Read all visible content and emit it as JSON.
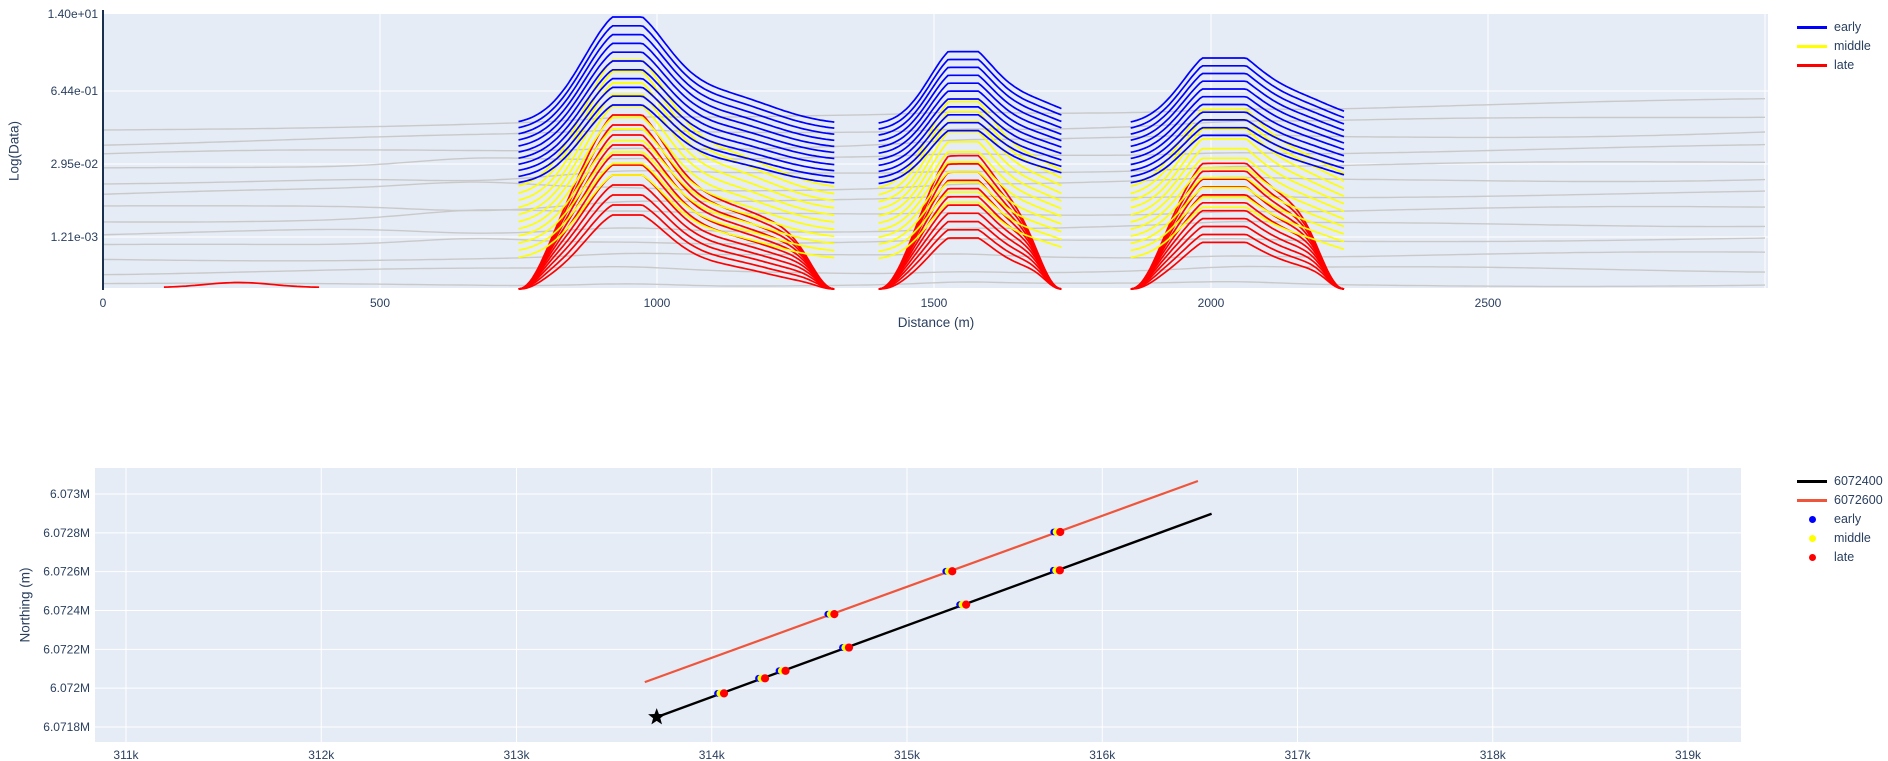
{
  "chart_data": [
    {
      "type": "line",
      "title": "",
      "xlabel": "Distance (m)",
      "ylabel": "Log(Data)",
      "background": "#e5ecf6",
      "grid": true,
      "x_range_m": [
        0,
        3006
      ],
      "x_ticks": [
        {
          "label": "0",
          "m": 0
        },
        {
          "label": "500",
          "m": 500
        },
        {
          "label": "1000",
          "m": 1000
        },
        {
          "label": "1500",
          "m": 1500
        },
        {
          "label": "2000",
          "m": 2000
        },
        {
          "label": "2500",
          "m": 2500
        }
      ],
      "x_grid_m": [
        500,
        1000,
        1500,
        2000,
        2500,
        3000
      ],
      "y_ticks": [
        {
          "label": "1.40e+01",
          "py": 14
        },
        {
          "label": "6.44e-01",
          "py": 91
        },
        {
          "label": "2.95e-02",
          "py": 164
        },
        {
          "label": "1.21e-03",
          "py": 237
        }
      ],
      "legend": {
        "position": "top-right",
        "items": [
          {
            "label": "early",
            "color": "#0000ff",
            "swatch": "line"
          },
          {
            "label": "middle",
            "color": "#ffff00",
            "swatch": "line"
          },
          {
            "label": "late",
            "color": "#ff0000",
            "swatch": "line"
          }
        ]
      },
      "bands": [
        {
          "name": "late",
          "color": "#ff0000",
          "count": 11,
          "tail0": 287,
          "dtail": -4.5,
          "peak0": 215,
          "dpeak": -10.0,
          "plunge": true
        },
        {
          "name": "middle",
          "color": "#ffff00",
          "count": 11,
          "tail0": 260,
          "dtail": -7.0,
          "peak0": 175,
          "dpeak": -11.5,
          "plunge": false
        },
        {
          "name": "early",
          "color": "#0000ff",
          "count": 11,
          "tail0": 185,
          "dtail": -6.0,
          "peak0": 105,
          "dpeak": -8.8,
          "plunge": false
        }
      ],
      "groups": [
        {
          "m0": 750,
          "m1": 1320,
          "peak_m": 940,
          "sigma_m": 72,
          "amp": 1.0,
          "shoulder_dm": 170,
          "shoulder_amp": 0.28
        },
        {
          "m0": 1400,
          "m1": 1730,
          "peak_m": 1545,
          "sigma_m": 54,
          "amp": 0.68,
          "shoulder_dm": 115,
          "shoulder_amp": 0.35
        },
        {
          "m0": 1855,
          "m1": 2240,
          "peak_m": 2010,
          "sigma_m": 62,
          "amp": 0.62,
          "shoulder_dm": 125,
          "shoulder_amp": 0.45
        }
      ],
      "gray_traces": {
        "color": "#c9c9c9",
        "count": 13,
        "top_py": 130,
        "spacing_py": 12.9,
        "right_drift_py": -30,
        "bump_m": 680
      },
      "extra_trace": {
        "color": "#ff0000",
        "m0": 110,
        "m1": 395,
        "peak_m": 245,
        "base_py": 287.5,
        "amp_py": 5
      }
    },
    {
      "type": "scatter",
      "title": "",
      "xlabel": "",
      "ylabel": "Northing (m)",
      "background": "#e5ecf6",
      "grid": true,
      "x_range": [
        310840,
        319270
      ],
      "y_range": [
        6071740,
        6073140
      ],
      "x_ticks": [
        {
          "label": "311k",
          "x": 311000
        },
        {
          "label": "312k",
          "x": 312000
        },
        {
          "label": "313k",
          "x": 313000
        },
        {
          "label": "314k",
          "x": 314000
        },
        {
          "label": "315k",
          "x": 315000
        },
        {
          "label": "316k",
          "x": 316000
        },
        {
          "label": "317k",
          "x": 317000
        },
        {
          "label": "318k",
          "x": 318000
        },
        {
          "label": "319k",
          "x": 319000
        }
      ],
      "y_ticks": [
        {
          "label": "6.073M",
          "y": 6073000
        },
        {
          "label": "6.0728M",
          "y": 6072800
        },
        {
          "label": "6.0726M",
          "y": 6072600
        },
        {
          "label": "6.0724M",
          "y": 6072400
        },
        {
          "label": "6.0722M",
          "y": 6072200
        },
        {
          "label": "6.072M",
          "y": 6072000
        },
        {
          "label": "6.0718M",
          "y": 6071800
        }
      ],
      "series": [
        {
          "name": "6072400",
          "color": "#000000",
          "type": "line",
          "width": 2.4,
          "points": [
            [
              313718,
              6071851
            ],
            [
              316560,
              6072898
            ]
          ],
          "start_marker": {
            "symbol": "star",
            "color": "#000000",
            "size": 9
          },
          "stations_x": [
            314050,
            314260,
            314365,
            314690,
            315290,
            315770
          ]
        },
        {
          "name": "6072600",
          "color": "#ef553b",
          "type": "line",
          "width": 2.2,
          "points": [
            [
              313657,
              6072031
            ],
            [
              316490,
              6073067
            ]
          ],
          "stations_x": [
            314615,
            315219,
            315772
          ]
        }
      ],
      "marker_classes": [
        {
          "label": "early",
          "color": "#0000ff"
        },
        {
          "label": "middle",
          "color": "#ffff00"
        },
        {
          "label": "late",
          "color": "#ff0000"
        }
      ],
      "legend": {
        "position": "top-right",
        "items": [
          {
            "label": "6072400",
            "color": "#000000",
            "swatch": "line"
          },
          {
            "label": "6072600",
            "color": "#ef553b",
            "swatch": "line"
          },
          {
            "label": "early",
            "color": "#0000ff",
            "swatch": "dot"
          },
          {
            "label": "middle",
            "color": "#ffff00",
            "swatch": "dot"
          },
          {
            "label": "late",
            "color": "#ff0000",
            "swatch": "dot"
          }
        ]
      }
    }
  ]
}
